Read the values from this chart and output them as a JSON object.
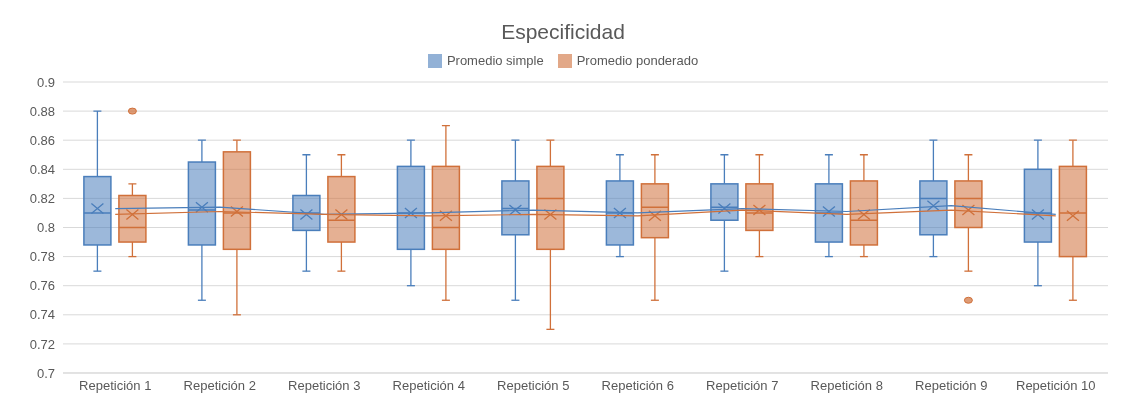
{
  "chart_data": {
    "type": "box",
    "title": "Especificidad",
    "categories": [
      "Repetición 1",
      "Repetición 2",
      "Repetición 3",
      "Repetición 4",
      "Repetición 5",
      "Repetición 6",
      "Repetición 7",
      "Repetición 8",
      "Repetición 9",
      "Repetición 10"
    ],
    "series": [
      {
        "name": "Promedio simple",
        "color": "#4a7ebb",
        "boxes": [
          {
            "low": 0.77,
            "q1": 0.788,
            "median": 0.81,
            "q3": 0.835,
            "high": 0.88,
            "mean": 0.813
          },
          {
            "low": 0.75,
            "q1": 0.788,
            "median": 0.812,
            "q3": 0.845,
            "high": 0.86,
            "mean": 0.814
          },
          {
            "low": 0.77,
            "q1": 0.798,
            "median": 0.81,
            "q3": 0.822,
            "high": 0.85,
            "mean": 0.809
          },
          {
            "low": 0.76,
            "q1": 0.785,
            "median": 0.81,
            "q3": 0.842,
            "high": 0.86,
            "mean": 0.81
          },
          {
            "low": 0.75,
            "q1": 0.795,
            "median": 0.813,
            "q3": 0.832,
            "high": 0.86,
            "mean": 0.812
          },
          {
            "low": 0.78,
            "q1": 0.788,
            "median": 0.81,
            "q3": 0.832,
            "high": 0.85,
            "mean": 0.81
          },
          {
            "low": 0.77,
            "q1": 0.805,
            "median": 0.814,
            "q3": 0.83,
            "high": 0.85,
            "mean": 0.813
          },
          {
            "low": 0.78,
            "q1": 0.79,
            "median": 0.81,
            "q3": 0.83,
            "high": 0.85,
            "mean": 0.811
          },
          {
            "low": 0.78,
            "q1": 0.795,
            "median": 0.82,
            "q3": 0.832,
            "high": 0.86,
            "mean": 0.815
          },
          {
            "low": 0.76,
            "q1": 0.79,
            "median": 0.81,
            "q3": 0.84,
            "high": 0.86,
            "mean": 0.809
          }
        ]
      },
      {
        "name": "Promedio ponderado",
        "color": "#d0703a",
        "boxes": [
          {
            "low": 0.78,
            "q1": 0.79,
            "median": 0.8,
            "q3": 0.822,
            "high": 0.83,
            "mean": 0.809,
            "outliers": [
              0.88
            ]
          },
          {
            "low": 0.74,
            "q1": 0.785,
            "median": 0.81,
            "q3": 0.852,
            "high": 0.86,
            "mean": 0.811
          },
          {
            "low": 0.77,
            "q1": 0.79,
            "median": 0.805,
            "q3": 0.835,
            "high": 0.85,
            "mean": 0.809
          },
          {
            "low": 0.75,
            "q1": 0.785,
            "median": 0.8,
            "q3": 0.842,
            "high": 0.87,
            "mean": 0.808
          },
          {
            "low": 0.73,
            "q1": 0.785,
            "median": 0.82,
            "q3": 0.842,
            "high": 0.86,
            "mean": 0.809
          },
          {
            "low": 0.75,
            "q1": 0.793,
            "median": 0.814,
            "q3": 0.83,
            "high": 0.85,
            "mean": 0.808
          },
          {
            "low": 0.78,
            "q1": 0.798,
            "median": 0.81,
            "q3": 0.83,
            "high": 0.85,
            "mean": 0.812
          },
          {
            "low": 0.78,
            "q1": 0.788,
            "median": 0.805,
            "q3": 0.832,
            "high": 0.85,
            "mean": 0.809
          },
          {
            "low": 0.77,
            "q1": 0.8,
            "median": 0.82,
            "q3": 0.832,
            "high": 0.85,
            "mean": 0.812,
            "outliers": [
              0.75
            ]
          },
          {
            "low": 0.75,
            "q1": 0.78,
            "median": 0.81,
            "q3": 0.842,
            "high": 0.86,
            "mean": 0.808
          }
        ]
      },
      {
        "type": "line",
        "color": "#4a7ebb",
        "values": [
          0.813,
          0.814,
          0.809,
          0.81,
          0.812,
          0.81,
          0.813,
          0.811,
          0.815,
          0.809
        ]
      },
      {
        "type": "line",
        "color": "#d0703a",
        "values": [
          0.809,
          0.811,
          0.809,
          0.808,
          0.809,
          0.808,
          0.812,
          0.809,
          0.812,
          0.808
        ]
      }
    ],
    "ylim": [
      0.7,
      0.9
    ],
    "yticks": [
      0.7,
      0.72,
      0.74,
      0.76,
      0.78,
      0.8,
      0.82,
      0.84,
      0.86,
      0.88,
      0.9
    ],
    "grid": "y",
    "legend": "top"
  }
}
